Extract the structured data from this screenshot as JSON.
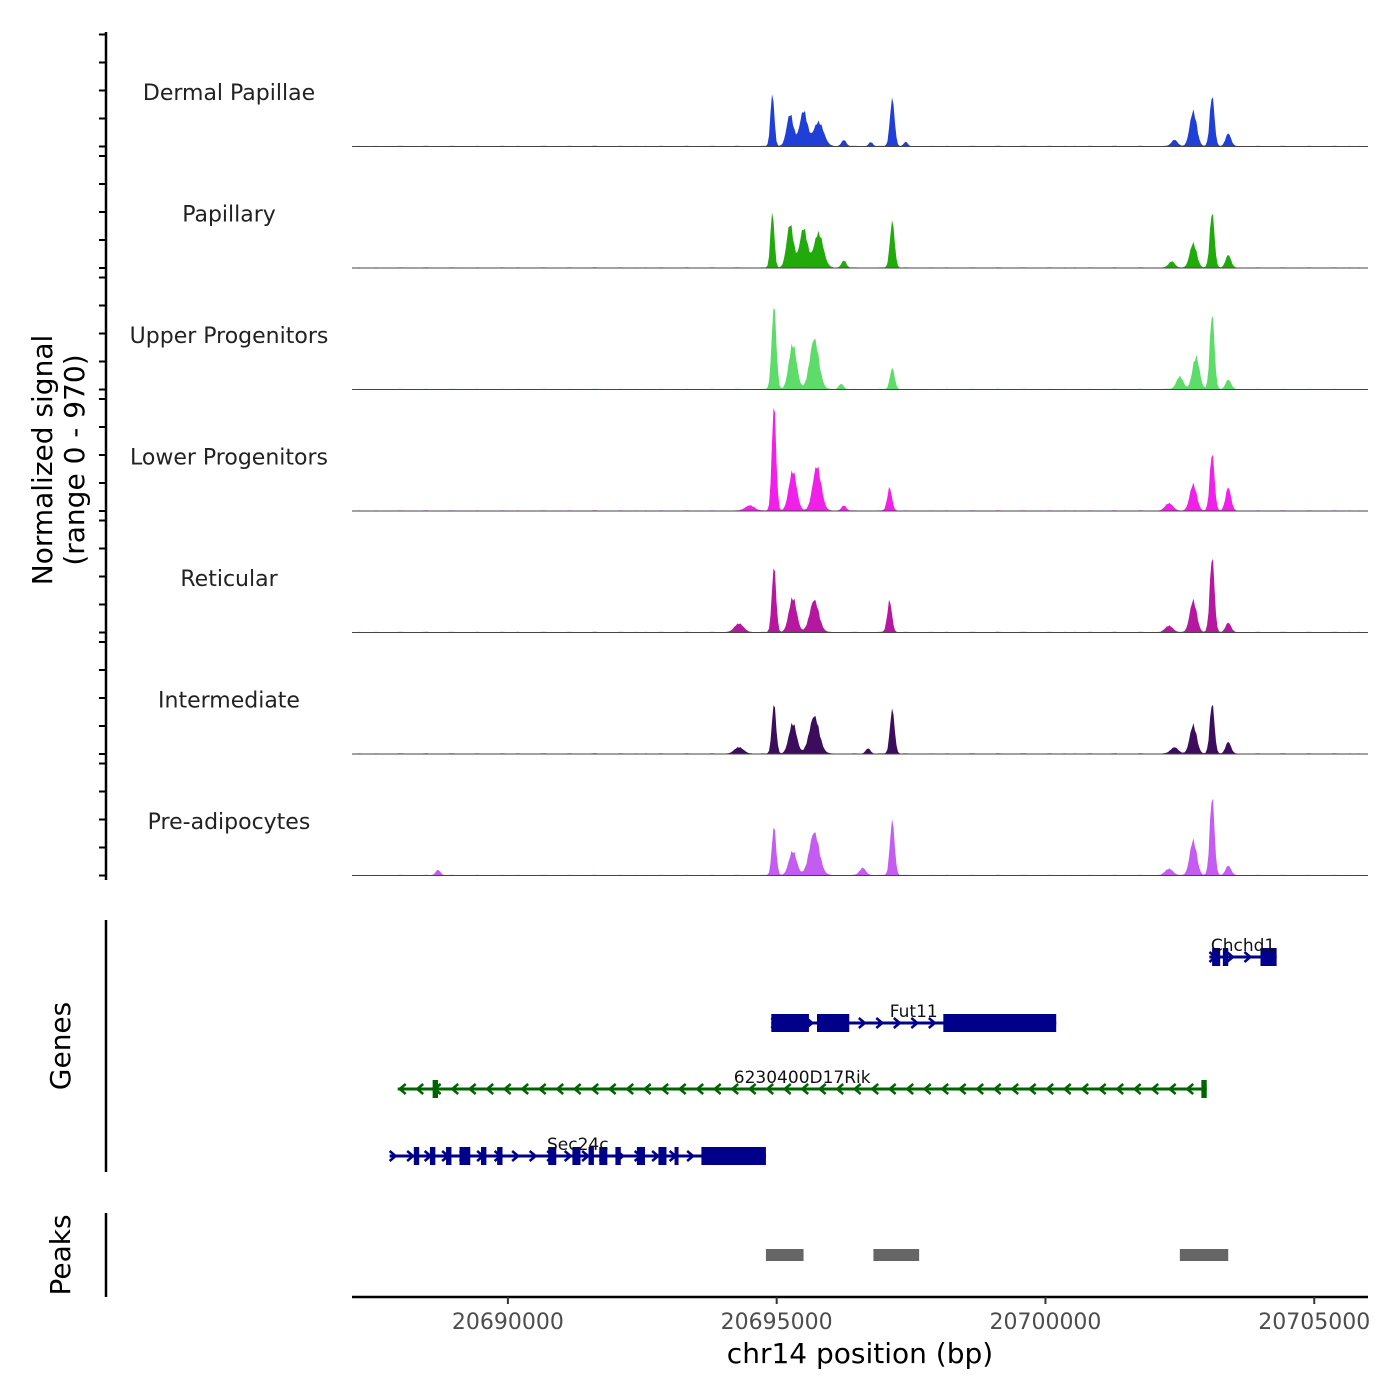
{
  "chart_data": {
    "type": "area",
    "title": "",
    "ylabel": "Normalized signal",
    "ylabel_range": "(range 0 - 970)",
    "ylim": [
      0,
      970
    ],
    "xlabel": "chr14 position (bp)",
    "xlim": [
      20687100,
      20706000
    ],
    "xticks": [
      20690000,
      20695000,
      20700000,
      20705000
    ],
    "xtick_labels": [
      "20690000",
      "20695000",
      "20700000",
      "20705000"
    ],
    "signal_tracks": [
      {
        "name": "Dermal Papillae",
        "color": "#1f3fd6",
        "peaks": [
          [
            20694920,
            500,
            50
          ],
          [
            20695250,
            300,
            90
          ],
          [
            20695500,
            330,
            100
          ],
          [
            20695780,
            230,
            130
          ],
          [
            20696250,
            60,
            60
          ],
          [
            20696750,
            40,
            50
          ],
          [
            20697150,
            450,
            60
          ],
          [
            20697400,
            40,
            50
          ],
          [
            20702400,
            60,
            80
          ],
          [
            20702750,
            330,
            90
          ],
          [
            20703100,
            480,
            60
          ],
          [
            20703400,
            120,
            70
          ]
        ]
      },
      {
        "name": "Papillary",
        "color": "#22aa0d",
        "peaks": [
          [
            20694920,
            530,
            50
          ],
          [
            20695250,
            410,
            90
          ],
          [
            20695500,
            370,
            100
          ],
          [
            20695780,
            330,
            120
          ],
          [
            20696250,
            70,
            60
          ],
          [
            20697150,
            440,
            60
          ],
          [
            20702350,
            60,
            80
          ],
          [
            20702750,
            230,
            90
          ],
          [
            20703100,
            530,
            60
          ],
          [
            20703400,
            120,
            70
          ]
        ]
      },
      {
        "name": "Upper Progenitors",
        "color": "#5edc6a",
        "peaks": [
          [
            20694950,
            790,
            60
          ],
          [
            20695300,
            430,
            100
          ],
          [
            20695700,
            470,
            120
          ],
          [
            20696200,
            50,
            60
          ],
          [
            20697150,
            200,
            60
          ],
          [
            20702500,
            120,
            90
          ],
          [
            20702800,
            310,
            90
          ],
          [
            20703100,
            720,
            60
          ],
          [
            20703400,
            90,
            70
          ]
        ]
      },
      {
        "name": "Lower Progenitors",
        "color": "#f020e8",
        "peaks": [
          [
            20694500,
            50,
            120
          ],
          [
            20694950,
            1000,
            55
          ],
          [
            20695300,
            380,
            100
          ],
          [
            20695750,
            420,
            110
          ],
          [
            20696250,
            50,
            60
          ],
          [
            20697100,
            220,
            60
          ],
          [
            20702300,
            70,
            100
          ],
          [
            20702750,
            250,
            90
          ],
          [
            20703100,
            550,
            60
          ],
          [
            20703400,
            220,
            70
          ]
        ]
      },
      {
        "name": "Reticular",
        "color": "#b5189f",
        "peaks": [
          [
            20694300,
            80,
            120
          ],
          [
            20694950,
            620,
            55
          ],
          [
            20695300,
            330,
            100
          ],
          [
            20695700,
            300,
            120
          ],
          [
            20697100,
            300,
            60
          ],
          [
            20702300,
            60,
            100
          ],
          [
            20702750,
            300,
            90
          ],
          [
            20703100,
            720,
            60
          ],
          [
            20703400,
            90,
            70
          ]
        ]
      },
      {
        "name": "Intermediate",
        "color": "#3b0d5c",
        "peaks": [
          [
            20694300,
            60,
            120
          ],
          [
            20694950,
            470,
            55
          ],
          [
            20695300,
            290,
            100
          ],
          [
            20695700,
            350,
            130
          ],
          [
            20696700,
            50,
            60
          ],
          [
            20697150,
            420,
            60
          ],
          [
            20702400,
            60,
            100
          ],
          [
            20702750,
            270,
            90
          ],
          [
            20703100,
            480,
            60
          ],
          [
            20703400,
            110,
            70
          ]
        ]
      },
      {
        "name": "Pre-adipocytes",
        "color": "#c55cf2",
        "peaks": [
          [
            20688700,
            50,
            60
          ],
          [
            20694950,
            460,
            55
          ],
          [
            20695300,
            230,
            100
          ],
          [
            20695700,
            400,
            130
          ],
          [
            20696600,
            70,
            80
          ],
          [
            20697150,
            520,
            60
          ],
          [
            20702300,
            60,
            100
          ],
          [
            20702750,
            330,
            90
          ],
          [
            20703100,
            750,
            60
          ],
          [
            20703400,
            90,
            70
          ]
        ]
      }
    ],
    "genes": [
      {
        "name": "Chchd1",
        "strand": "+",
        "start": 20703050,
        "end": 20704300,
        "color": "#00008b",
        "exons": [
          [
            20703100,
            20703250
          ],
          [
            20703300,
            20703400
          ],
          [
            20704000,
            20704300
          ]
        ]
      },
      {
        "name": "Fut11",
        "strand": "+",
        "start": 20694900,
        "end": 20700200,
        "color": "#00008b",
        "exons": [
          [
            20694900,
            20695600
          ],
          [
            20695750,
            20696350
          ],
          [
            20698100,
            20700200
          ]
        ]
      },
      {
        "name": "6230400D17Rik",
        "strand": "-",
        "start": 20687950,
        "end": 20703000,
        "color": "#006400",
        "exons": [
          [
            20688600,
            20688700
          ],
          [
            20702900,
            20703000
          ]
        ]
      },
      {
        "name": "Sec24c",
        "strand": "+",
        "start": 20687800,
        "end": 20694800,
        "color": "#00008b",
        "exons": [
          [
            20688250,
            20688350
          ],
          [
            20688550,
            20688650
          ],
          [
            20688850,
            20688950
          ],
          [
            20689100,
            20689300
          ],
          [
            20689500,
            20689600
          ],
          [
            20689800,
            20689900
          ],
          [
            20690750,
            20690900
          ],
          [
            20691200,
            20691350
          ],
          [
            20691500,
            20691600
          ],
          [
            20691700,
            20691850
          ],
          [
            20692000,
            20692100
          ],
          [
            20692400,
            20692550
          ],
          [
            20692800,
            20692950
          ],
          [
            20693100,
            20693150
          ],
          [
            20693600,
            20694800
          ]
        ]
      }
    ],
    "genes_label": "Genes",
    "peaks_label": "Peaks",
    "peak_regions": [
      [
        20694800,
        20695500
      ],
      [
        20696800,
        20697650
      ],
      [
        20702500,
        20703400
      ]
    ],
    "peak_color": "#666666"
  }
}
